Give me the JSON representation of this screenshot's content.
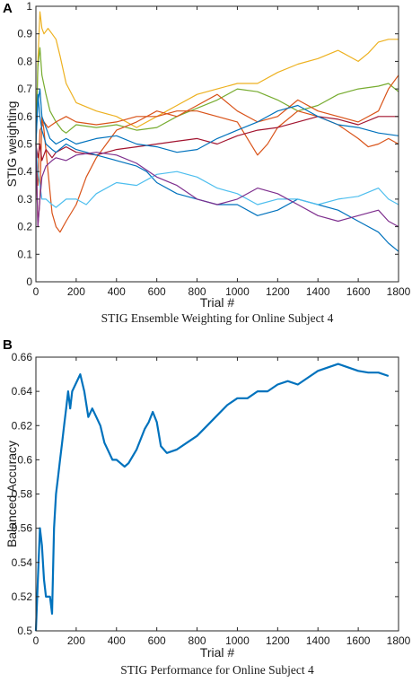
{
  "chart_data": [
    {
      "type": "line",
      "panel_label": "A",
      "title": "",
      "caption": "STIG Ensemble Weighting for Online Subject 4",
      "xlabel": "Trial #",
      "ylabel": "STIG weighting",
      "xlim": [
        0,
        1800
      ],
      "ylim": [
        0,
        1
      ],
      "xticks": [
        0,
        200,
        400,
        600,
        800,
        1000,
        1200,
        1400,
        1600,
        1800
      ],
      "yticks": [
        0,
        0.1,
        0.2,
        0.3,
        0.4,
        0.5,
        0.6,
        0.7,
        0.8,
        0.9,
        1
      ],
      "ytick_labels": [
        "0",
        "0.1",
        "0.2",
        "0.3",
        "0.4",
        "0.5",
        "0.6",
        "0.7",
        "0.8",
        "0.9",
        "1"
      ],
      "grid": false,
      "legend": "none",
      "series": [
        {
          "color": "#EDB120",
          "x": [
            0,
            10,
            20,
            30,
            40,
            60,
            80,
            100,
            120,
            150,
            200,
            300,
            400,
            500,
            600,
            700,
            800,
            900,
            1000,
            1100,
            1200,
            1300,
            1400,
            1500,
            1600,
            1650,
            1700,
            1750,
            1800
          ],
          "y": [
            0.5,
            0.8,
            0.98,
            0.92,
            0.9,
            0.92,
            0.9,
            0.88,
            0.82,
            0.72,
            0.65,
            0.62,
            0.6,
            0.56,
            0.6,
            0.64,
            0.68,
            0.7,
            0.72,
            0.72,
            0.76,
            0.79,
            0.81,
            0.84,
            0.8,
            0.83,
            0.87,
            0.88,
            0.88
          ]
        },
        {
          "color": "#77AC30",
          "x": [
            0,
            10,
            20,
            30,
            50,
            70,
            100,
            130,
            150,
            200,
            300,
            400,
            500,
            600,
            700,
            800,
            900,
            1000,
            1100,
            1200,
            1300,
            1400,
            1500,
            1600,
            1700,
            1750,
            1800
          ],
          "y": [
            0.5,
            0.78,
            0.85,
            0.75,
            0.68,
            0.62,
            0.58,
            0.55,
            0.54,
            0.57,
            0.56,
            0.57,
            0.55,
            0.56,
            0.6,
            0.63,
            0.66,
            0.7,
            0.69,
            0.66,
            0.62,
            0.64,
            0.68,
            0.7,
            0.71,
            0.72,
            0.69
          ]
        },
        {
          "color": "#D95319",
          "x": [
            0,
            10,
            20,
            30,
            40,
            60,
            80,
            100,
            120,
            150,
            200,
            250,
            300,
            400,
            500,
            600,
            700,
            800,
            900,
            1000,
            1100,
            1200,
            1300,
            1400,
            1500,
            1600,
            1700,
            1750,
            1800
          ],
          "y": [
            0.5,
            0.2,
            0.3,
            0.6,
            0.55,
            0.4,
            0.25,
            0.2,
            0.18,
            0.22,
            0.28,
            0.38,
            0.45,
            0.55,
            0.58,
            0.62,
            0.6,
            0.64,
            0.68,
            0.62,
            0.58,
            0.6,
            0.66,
            0.62,
            0.6,
            0.58,
            0.62,
            0.7,
            0.75
          ]
        },
        {
          "color": "#D95319",
          "x": [
            0,
            10,
            20,
            40,
            60,
            100,
            150,
            200,
            300,
            400,
            500,
            600,
            700,
            800,
            900,
            1000,
            1050,
            1100,
            1150,
            1200,
            1300,
            1400,
            1500,
            1600,
            1650,
            1700,
            1750,
            1800
          ],
          "y": [
            0.5,
            0.35,
            0.55,
            0.58,
            0.56,
            0.58,
            0.6,
            0.58,
            0.57,
            0.58,
            0.6,
            0.6,
            0.62,
            0.62,
            0.6,
            0.58,
            0.52,
            0.46,
            0.5,
            0.56,
            0.62,
            0.6,
            0.57,
            0.52,
            0.49,
            0.5,
            0.52,
            0.5
          ]
        },
        {
          "color": "#A2142F",
          "x": [
            0,
            10,
            20,
            30,
            50,
            80,
            100,
            150,
            200,
            300,
            400,
            500,
            600,
            700,
            800,
            900,
            1000,
            1100,
            1200,
            1300,
            1400,
            1500,
            1600,
            1700,
            1800
          ],
          "y": [
            0.5,
            0.45,
            0.5,
            0.44,
            0.48,
            0.45,
            0.47,
            0.49,
            0.47,
            0.46,
            0.48,
            0.49,
            0.5,
            0.51,
            0.52,
            0.5,
            0.53,
            0.55,
            0.56,
            0.58,
            0.6,
            0.59,
            0.57,
            0.6,
            0.6
          ]
        },
        {
          "color": "#0072BD",
          "x": [
            0,
            10,
            20,
            30,
            50,
            70,
            100,
            150,
            200,
            300,
            400,
            500,
            600,
            700,
            800,
            900,
            1000,
            1100,
            1200,
            1300,
            1400,
            1500,
            1600,
            1700,
            1800
          ],
          "y": [
            0.5,
            0.65,
            0.7,
            0.6,
            0.56,
            0.52,
            0.5,
            0.52,
            0.5,
            0.52,
            0.53,
            0.5,
            0.49,
            0.47,
            0.48,
            0.52,
            0.55,
            0.58,
            0.62,
            0.64,
            0.6,
            0.57,
            0.56,
            0.54,
            0.53
          ]
        },
        {
          "color": "#0072BD",
          "x": [
            0,
            10,
            20,
            30,
            50,
            80,
            100,
            150,
            200,
            300,
            400,
            500,
            550,
            600,
            700,
            800,
            900,
            1000,
            1100,
            1200,
            1300,
            1400,
            1500,
            1600,
            1700,
            1750,
            1800
          ],
          "y": [
            0.5,
            0.68,
            0.6,
            0.55,
            0.5,
            0.48,
            0.47,
            0.5,
            0.48,
            0.46,
            0.44,
            0.42,
            0.4,
            0.36,
            0.32,
            0.3,
            0.28,
            0.28,
            0.24,
            0.26,
            0.3,
            0.28,
            0.26,
            0.22,
            0.18,
            0.14,
            0.11
          ]
        },
        {
          "color": "#4DBEEE",
          "x": [
            0,
            10,
            20,
            30,
            50,
            80,
            100,
            150,
            200,
            250,
            300,
            400,
            500,
            600,
            700,
            800,
            900,
            1000,
            1100,
            1200,
            1300,
            1400,
            1500,
            1600,
            1700,
            1750,
            1800
          ],
          "y": [
            0.5,
            0.4,
            0.35,
            0.3,
            0.3,
            0.28,
            0.27,
            0.3,
            0.3,
            0.28,
            0.32,
            0.36,
            0.35,
            0.39,
            0.4,
            0.38,
            0.34,
            0.32,
            0.28,
            0.3,
            0.3,
            0.28,
            0.3,
            0.31,
            0.34,
            0.3,
            0.28
          ]
        },
        {
          "color": "#7E2F8E",
          "x": [
            0,
            10,
            20,
            30,
            50,
            80,
            100,
            150,
            200,
            300,
            400,
            500,
            600,
            700,
            800,
            900,
            1000,
            1100,
            1200,
            1300,
            1400,
            1500,
            1600,
            1700,
            1750,
            1800
          ],
          "y": [
            0.5,
            0.2,
            0.3,
            0.38,
            0.42,
            0.44,
            0.45,
            0.44,
            0.46,
            0.47,
            0.46,
            0.43,
            0.38,
            0.35,
            0.3,
            0.28,
            0.3,
            0.34,
            0.32,
            0.28,
            0.24,
            0.22,
            0.24,
            0.26,
            0.22,
            0.2
          ]
        }
      ]
    },
    {
      "type": "line",
      "panel_label": "B",
      "title": "",
      "caption": "STIG Performance for Online Subject 4",
      "xlabel": "Trial #",
      "ylabel": "Balanced Accuracy",
      "xlim": [
        0,
        1800
      ],
      "ylim": [
        0.5,
        0.66
      ],
      "xticks": [
        0,
        200,
        400,
        600,
        800,
        1000,
        1200,
        1400,
        1600,
        1800
      ],
      "yticks": [
        0.5,
        0.52,
        0.54,
        0.56,
        0.58,
        0.6,
        0.62,
        0.64,
        0.66
      ],
      "ytick_labels": [
        "0.5",
        "0.52",
        "0.54",
        "0.56",
        "0.58",
        "0.6",
        "0.62",
        "0.64",
        "0.66"
      ],
      "grid": false,
      "legend": "none",
      "series": [
        {
          "color": "#0072BD",
          "x": [
            0,
            10,
            20,
            30,
            40,
            50,
            60,
            70,
            80,
            90,
            100,
            110,
            120,
            130,
            140,
            150,
            160,
            170,
            180,
            200,
            220,
            240,
            260,
            280,
            300,
            320,
            340,
            360,
            380,
            400,
            420,
            440,
            460,
            480,
            500,
            520,
            540,
            560,
            580,
            600,
            620,
            650,
            700,
            750,
            800,
            850,
            900,
            950,
            1000,
            1050,
            1100,
            1150,
            1200,
            1250,
            1300,
            1350,
            1400,
            1450,
            1500,
            1550,
            1600,
            1650,
            1700,
            1750
          ],
          "y": [
            0.5,
            0.53,
            0.56,
            0.55,
            0.53,
            0.52,
            0.52,
            0.52,
            0.51,
            0.56,
            0.58,
            0.59,
            0.6,
            0.61,
            0.62,
            0.63,
            0.64,
            0.63,
            0.64,
            0.645,
            0.65,
            0.64,
            0.625,
            0.63,
            0.625,
            0.62,
            0.61,
            0.605,
            0.6,
            0.6,
            0.598,
            0.596,
            0.598,
            0.602,
            0.606,
            0.612,
            0.618,
            0.622,
            0.628,
            0.622,
            0.608,
            0.604,
            0.606,
            0.61,
            0.614,
            0.62,
            0.626,
            0.632,
            0.636,
            0.636,
            0.64,
            0.64,
            0.644,
            0.646,
            0.644,
            0.648,
            0.652,
            0.654,
            0.656,
            0.654,
            0.652,
            0.651,
            0.651,
            0.649
          ]
        }
      ]
    }
  ]
}
